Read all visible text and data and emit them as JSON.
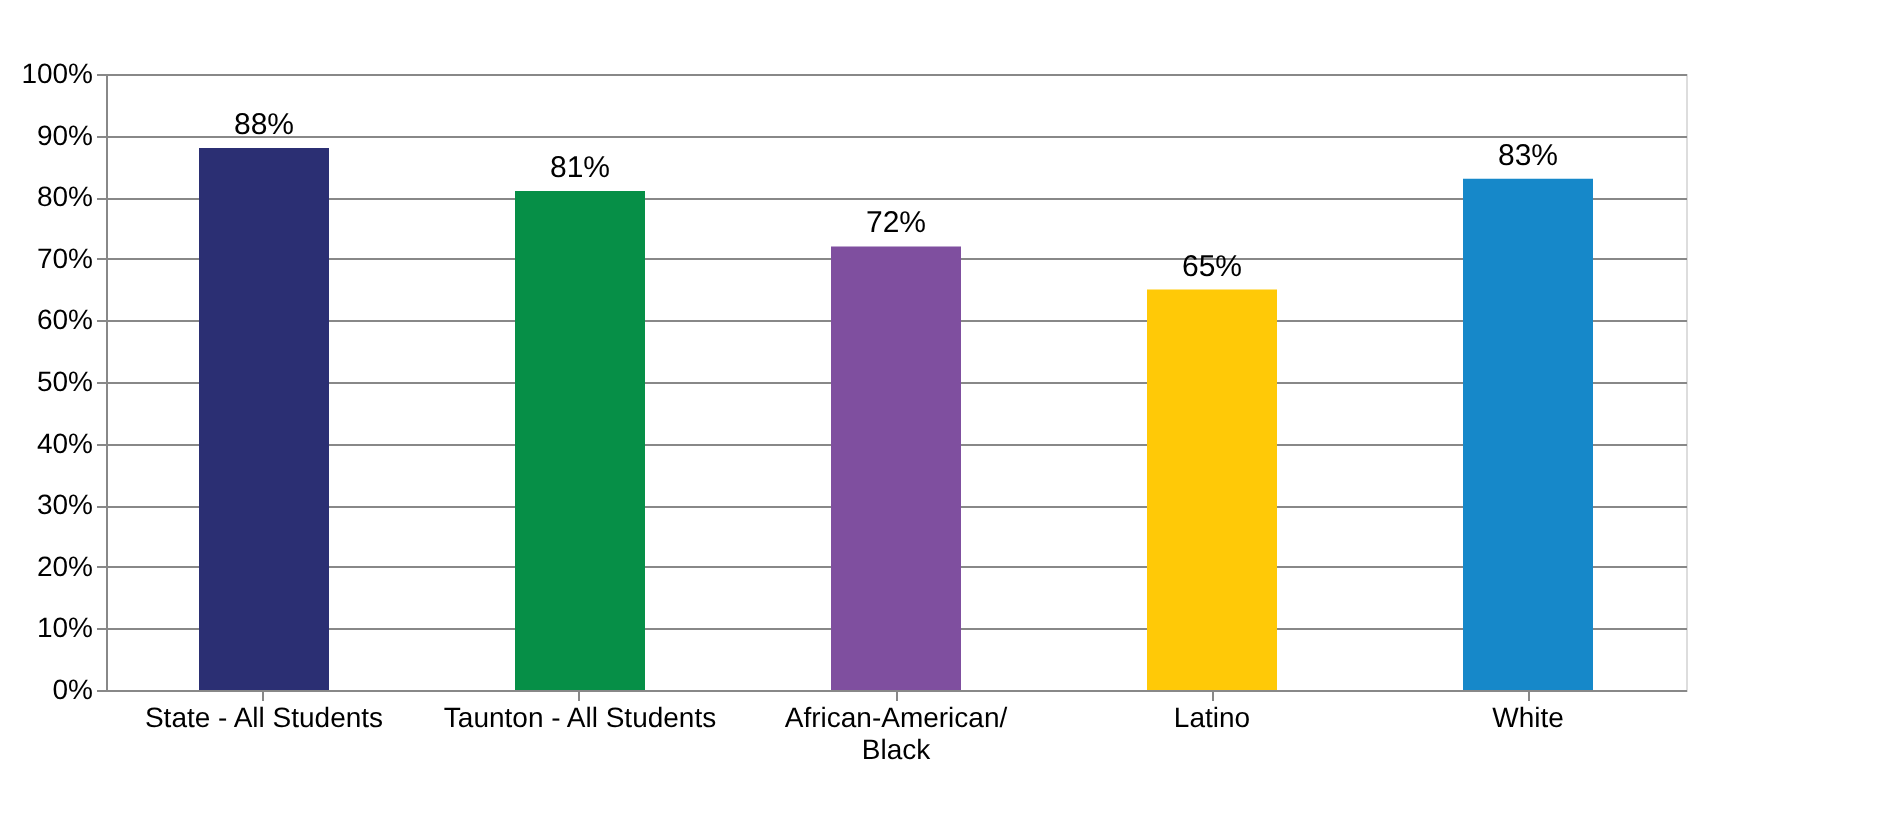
{
  "chart_data": {
    "type": "bar",
    "categories": [
      "State - All Students",
      "Taunton - All Students",
      "African-American/\nBlack",
      "Latino",
      "White"
    ],
    "values": [
      88,
      81,
      72,
      65,
      83
    ],
    "colors": [
      "#2b2f73",
      "#068f47",
      "#7f4f9f",
      "#ffc907",
      "#1688c9"
    ],
    "value_labels": [
      "88%",
      "81%",
      "72%",
      "65%",
      "83%"
    ],
    "ylim": [
      0,
      100
    ],
    "yticks": [
      {
        "value": 0,
        "label": "0%"
      },
      {
        "value": 10,
        "label": "10%"
      },
      {
        "value": 20,
        "label": "20%"
      },
      {
        "value": 30,
        "label": "30%"
      },
      {
        "value": 40,
        "label": "40%"
      },
      {
        "value": 50,
        "label": "50%"
      },
      {
        "value": 60,
        "label": "60%"
      },
      {
        "value": 70,
        "label": "70%"
      },
      {
        "value": 80,
        "label": "80%"
      },
      {
        "value": 90,
        "label": "90%"
      },
      {
        "value": 100,
        "label": "100%"
      }
    ],
    "grid": "y"
  }
}
